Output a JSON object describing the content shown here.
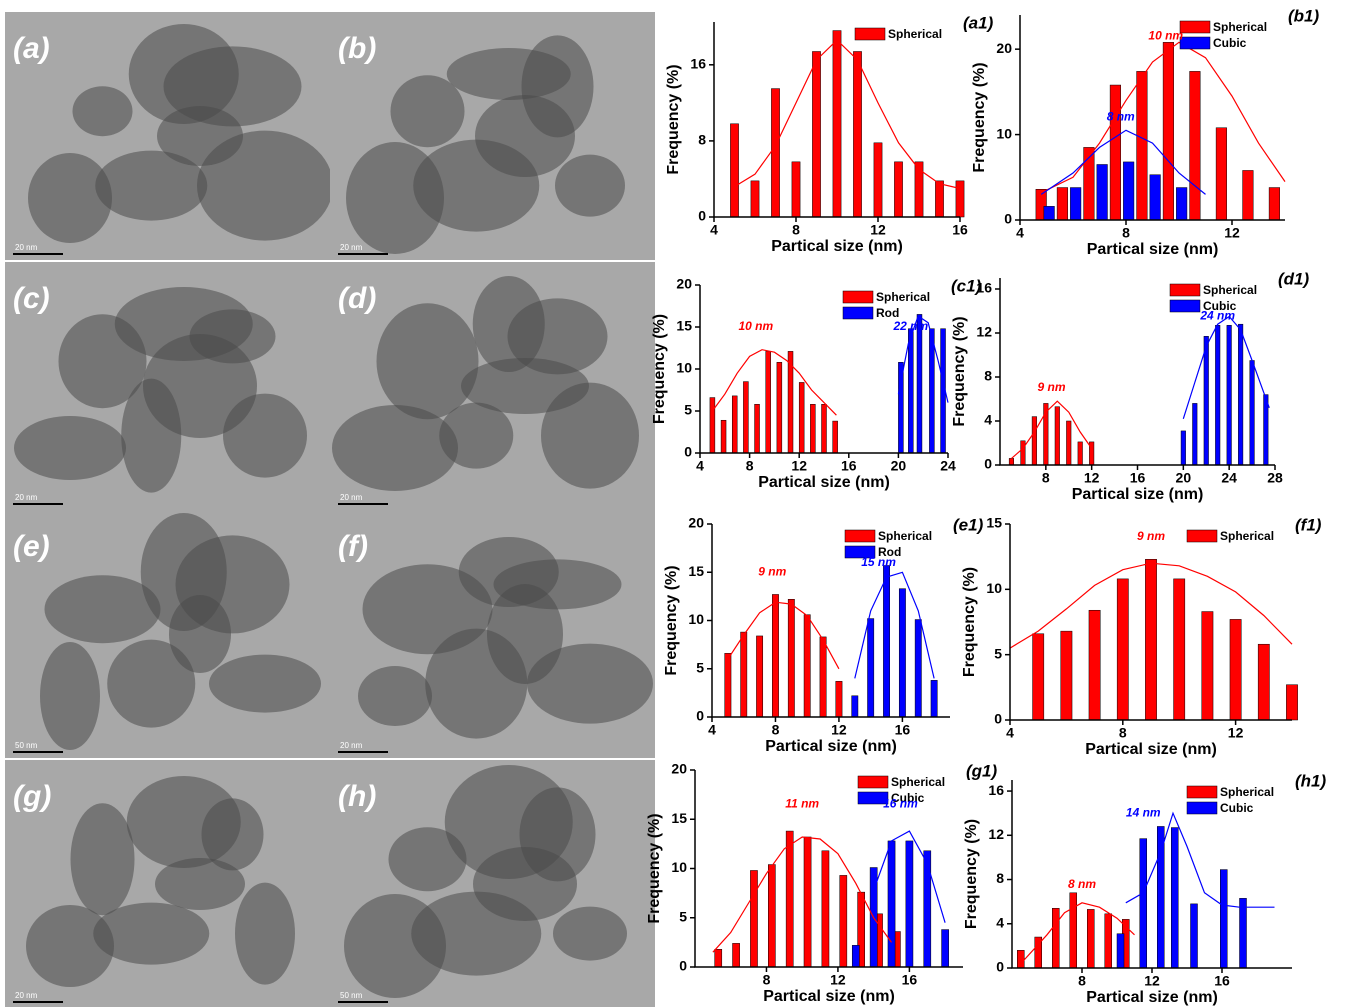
{
  "images": [
    {
      "label": "(a)",
      "scale_bar": "20 nm"
    },
    {
      "label": "(b)",
      "scale_bar": "20 nm"
    },
    {
      "label": "(c)",
      "scale_bar": "20 nm"
    },
    {
      "label": "(d)",
      "scale_bar": "20 nm"
    },
    {
      "label": "(e)",
      "scale_bar": "50 nm"
    },
    {
      "label": "(f)",
      "scale_bar": "20 nm"
    },
    {
      "label": "(g)",
      "scale_bar": "20 nm"
    },
    {
      "label": "(h)",
      "scale_bar": "50 nm"
    }
  ],
  "chart_data": [
    {
      "type": "bar",
      "panel": "(a1)",
      "xlabel": "Partical size (nm)",
      "ylabel": "Frequency (%)",
      "legend": "upper right",
      "xlim": [
        4,
        16
      ],
      "ylim": [
        0,
        20.5
      ],
      "xticks": [
        4,
        8,
        12,
        16
      ],
      "yticks": [
        0,
        8,
        16
      ],
      "series": [
        {
          "name": "Spherical",
          "color": "#ff0000",
          "x": [
            5,
            6,
            7,
            8,
            9,
            10,
            11,
            12,
            13,
            14,
            15,
            16
          ],
          "values": [
            9.8,
            3.8,
            13.5,
            5.8,
            17.4,
            19.6,
            17.4,
            7.8,
            5.8,
            5.8,
            3.8,
            3.8
          ]
        }
      ],
      "fits": [
        {
          "color": "#ff0000",
          "x": [
            5,
            6,
            7,
            8,
            9,
            10,
            11,
            12,
            13,
            14,
            15,
            16
          ],
          "values": [
            3.2,
            4.5,
            7.5,
            12,
            16.5,
            18.6,
            16.5,
            12,
            7.8,
            5,
            3.5,
            3
          ]
        }
      ],
      "annotations": []
    },
    {
      "type": "bar",
      "panel": "(b1)",
      "xlabel": "Partical size (nm)",
      "ylabel": "Frequency (%)",
      "legend": "upper right",
      "xlim": [
        4,
        14
      ],
      "ylim": [
        0,
        24
      ],
      "xticks": [
        4,
        8,
        12
      ],
      "yticks": [
        0,
        10,
        20
      ],
      "series": [
        {
          "name": "Spherical",
          "color": "#ff0000",
          "x": [
            4.8,
            5.6,
            6.6,
            7.6,
            8.6,
            9.6,
            10.6,
            11.6,
            12.6,
            13.6
          ],
          "values": [
            3.6,
            3.8,
            8.5,
            15.8,
            17.4,
            20.8,
            17.4,
            10.8,
            5.8,
            3.8
          ]
        },
        {
          "name": "Cubic",
          "color": "#0000ff",
          "x": [
            5.1,
            6.1,
            7.1,
            8.1,
            9.1,
            10.1
          ],
          "values": [
            1.6,
            3.8,
            6.5,
            6.8,
            5.3,
            3.8
          ]
        }
      ],
      "fits": [
        {
          "color": "#ff0000",
          "x": [
            4.8,
            6,
            7,
            8,
            9,
            10,
            11,
            12,
            13,
            14
          ],
          "values": [
            3.2,
            5,
            9,
            14,
            18.5,
            20.8,
            19,
            14.5,
            9,
            4.5
          ]
        },
        {
          "color": "#0000ff",
          "x": [
            4.8,
            6,
            7,
            8,
            9,
            10,
            11
          ],
          "values": [
            3,
            5.5,
            8.5,
            10.5,
            9,
            5.5,
            3
          ]
        }
      ],
      "annotations": [
        {
          "text": "10 nm",
          "color": "#ff0000"
        },
        {
          "text": "8 nm",
          "color": "#0000ff"
        }
      ]
    },
    {
      "type": "bar",
      "panel": "(c1)",
      "xlabel": "Partical size (nm)",
      "ylabel": "Frequency (%)",
      "legend": "upper right",
      "xlim": [
        4,
        24
      ],
      "ylim": [
        0,
        20
      ],
      "xticks": [
        4,
        8,
        12,
        16,
        20,
        24
      ],
      "yticks": [
        0,
        5,
        10,
        15,
        20
      ],
      "series": [
        {
          "name": "Spherical",
          "color": "#ff0000",
          "x": [
            5,
            5.9,
            6.8,
            7.7,
            8.6,
            9.5,
            10.4,
            11.3,
            12.2,
            13.1,
            14,
            14.9
          ],
          "values": [
            6.6,
            3.9,
            6.8,
            8.5,
            5.8,
            12.1,
            10.8,
            12.1,
            8.4,
            5.8,
            5.8,
            3.8
          ]
        },
        {
          "name": "Rod",
          "color": "#0000ff",
          "x": [
            20.2,
            21,
            21.7,
            22.7,
            23.6
          ],
          "values": [
            10.8,
            14.8,
            16.5,
            14.8,
            14.8
          ]
        }
      ],
      "fits": [
        {
          "color": "#ff0000",
          "x": [
            5,
            6,
            7,
            8,
            9,
            10,
            11,
            12,
            13,
            14,
            15
          ],
          "values": [
            5,
            7,
            9.5,
            11.5,
            12.3,
            12,
            11,
            9.5,
            7.5,
            6,
            4.5
          ]
        },
        {
          "color": "#0000ff",
          "x": [
            20,
            20.8,
            21.6,
            22.4,
            23.2,
            24
          ],
          "values": [
            7,
            13,
            16.3,
            15.5,
            11,
            6
          ]
        }
      ],
      "annotations": [
        {
          "text": "10 nm",
          "color": "#ff0000"
        },
        {
          "text": "22 nm",
          "color": "#0000ff"
        }
      ]
    },
    {
      "type": "bar",
      "panel": "(d1)",
      "xlabel": "Partical size (nm)",
      "ylabel": "Frequency (%)",
      "legend": "upper right",
      "xlim": [
        4,
        28
      ],
      "ylim": [
        0,
        17
      ],
      "xticks": [
        8,
        12,
        16,
        20,
        24,
        28
      ],
      "yticks": [
        0,
        4,
        8,
        12,
        16
      ],
      "series": [
        {
          "name": "Spherical",
          "color": "#ff0000",
          "x": [
            5,
            6,
            7,
            8,
            9,
            10,
            11,
            12
          ],
          "values": [
            0.6,
            2.2,
            4.4,
            5.6,
            5.3,
            4,
            2.1,
            2.1
          ]
        },
        {
          "name": "Cubic",
          "color": "#0000ff",
          "x": [
            20,
            21,
            22,
            23,
            24,
            25,
            26,
            27.2
          ],
          "values": [
            3.1,
            5.6,
            11.7,
            12.7,
            12.7,
            12.8,
            9.5,
            6.4
          ]
        }
      ],
      "fits": [
        {
          "color": "#ff0000",
          "x": [
            5,
            6,
            7,
            8,
            9,
            10,
            11,
            12
          ],
          "values": [
            0.6,
            1.5,
            3,
            4.8,
            5.8,
            4.8,
            3,
            1.5
          ]
        },
        {
          "color": "#0000ff",
          "x": [
            20,
            21,
            22,
            23,
            24,
            25,
            26,
            27.5
          ],
          "values": [
            4.2,
            7.5,
            10.8,
            12.8,
            13.5,
            12.3,
            9.5,
            5.2
          ]
        }
      ],
      "annotations": [
        {
          "text": "9 nm",
          "color": "#ff0000"
        },
        {
          "text": "24 nm",
          "color": "#0000ff"
        }
      ]
    },
    {
      "type": "bar",
      "panel": "(e1)",
      "xlabel": "Partical size (nm)",
      "ylabel": "Frequency (%)",
      "legend": "upper right",
      "xlim": [
        4,
        19
      ],
      "ylim": [
        0,
        20
      ],
      "xticks": [
        4,
        8,
        12,
        16
      ],
      "yticks": [
        0,
        5,
        10,
        15,
        20
      ],
      "series": [
        {
          "name": "Spherical",
          "color": "#ff0000",
          "x": [
            5,
            6,
            7,
            8,
            9,
            10,
            11,
            12
          ],
          "values": [
            6.6,
            8.8,
            8.4,
            12.7,
            12.2,
            10.6,
            8.3,
            3.7
          ]
        },
        {
          "name": "Rod",
          "color": "#0000ff",
          "x": [
            13,
            14,
            15,
            16,
            17,
            18
          ],
          "values": [
            2.2,
            10.2,
            15.7,
            13.3,
            10.1,
            3.8
          ]
        }
      ],
      "fits": [
        {
          "color": "#ff0000",
          "x": [
            5,
            6,
            7,
            8,
            9,
            10,
            11,
            12
          ],
          "values": [
            6,
            8.5,
            10.8,
            11.9,
            11.7,
            10.5,
            8,
            5
          ]
        },
        {
          "color": "#0000ff",
          "x": [
            13,
            14,
            15,
            16,
            17,
            18
          ],
          "values": [
            4,
            11,
            14.5,
            15,
            11,
            4
          ]
        }
      ],
      "annotations": [
        {
          "text": "9 nm",
          "color": "#ff0000"
        },
        {
          "text": "15 nm",
          "color": "#0000ff"
        }
      ]
    },
    {
      "type": "bar",
      "panel": "(f1)",
      "xlabel": "Partical size (nm)",
      "ylabel": "Frequency (%)",
      "legend": "upper right",
      "xlim": [
        4,
        14
      ],
      "ylim": [
        0,
        15
      ],
      "xticks": [
        4,
        8,
        12
      ],
      "yticks": [
        0,
        5,
        10,
        15
      ],
      "series": [
        {
          "name": "Spherical",
          "color": "#ff0000",
          "x": [
            5,
            6,
            7,
            8,
            9,
            10,
            11,
            12,
            13,
            14
          ],
          "values": [
            6.6,
            6.8,
            8.4,
            10.8,
            12.3,
            10.8,
            8.3,
            7.7,
            5.8,
            2.7
          ]
        }
      ],
      "fits": [
        {
          "color": "#ff0000",
          "x": [
            4,
            5,
            6,
            7,
            8,
            9,
            10,
            11,
            12,
            13,
            14
          ],
          "values": [
            5.5,
            6.8,
            8.5,
            10.3,
            11.5,
            12,
            11.8,
            11,
            9.8,
            8,
            5.8
          ]
        }
      ],
      "annotations": [
        {
          "text": "9 nm",
          "color": "#ff0000"
        }
      ]
    },
    {
      "type": "bar",
      "panel": "(g1)",
      "xlabel": "Partical size (nm)",
      "ylabel": "Frequency (%)",
      "legend": "upper right",
      "xlim": [
        4,
        19
      ],
      "ylim": [
        0,
        20
      ],
      "xticks": [
        8,
        12,
        16
      ],
      "yticks": [
        0,
        5,
        10,
        15,
        20
      ],
      "series": [
        {
          "name": "Spherical",
          "color": "#ff0000",
          "x": [
            5.3,
            6.3,
            7.3,
            8.3,
            9.3,
            10.3,
            11.3,
            12.3,
            13.3,
            14.3,
            15.3
          ],
          "values": [
            1.8,
            2.4,
            9.8,
            10.4,
            13.8,
            13.2,
            11.8,
            9.3,
            7.6,
            5.4,
            3.6
          ]
        },
        {
          "name": "Cubic",
          "color": "#0000ff",
          "x": [
            13,
            14,
            15,
            16,
            17,
            18
          ],
          "values": [
            2.2,
            10.1,
            12.8,
            12.8,
            11.8,
            3.8
          ]
        }
      ],
      "fits": [
        {
          "color": "#ff0000",
          "x": [
            5,
            6,
            7,
            8,
            9,
            10,
            11,
            12,
            13,
            14,
            15
          ],
          "values": [
            1.5,
            3.5,
            6.5,
            9.5,
            12,
            13.2,
            13,
            11.5,
            8.5,
            5,
            2.5
          ]
        },
        {
          "color": "#0000ff",
          "x": [
            14,
            15,
            16,
            17,
            18
          ],
          "values": [
            7.8,
            12.8,
            13.8,
            10.5,
            4.5
          ]
        }
      ],
      "annotations": [
        {
          "text": "11 nm",
          "color": "#ff0000"
        },
        {
          "text": "16 nm",
          "color": "#0000ff"
        }
      ]
    },
    {
      "type": "bar",
      "panel": "(h1)",
      "xlabel": "Partical size (nm)",
      "ylabel": "Frequency (%)",
      "legend": "upper right",
      "xlim": [
        4,
        20
      ],
      "ylim": [
        0,
        17
      ],
      "xticks": [
        8,
        12,
        16
      ],
      "yticks": [
        0,
        4,
        8,
        12,
        16
      ],
      "series": [
        {
          "name": "Spherical",
          "color": "#ff0000",
          "x": [
            4.5,
            5.5,
            6.5,
            7.5,
            8.5,
            9.5,
            10.5
          ],
          "values": [
            1.6,
            2.8,
            5.4,
            6.8,
            5.3,
            4.9,
            4.4
          ]
        },
        {
          "name": "Cubic",
          "color": "#0000ff",
          "x": [
            10.2,
            11.5,
            12.5,
            13.3,
            14.4,
            16.1,
            17.2
          ],
          "values": [
            3.1,
            11.7,
            12.8,
            12.7,
            5.8,
            8.9,
            6.3
          ]
        }
      ],
      "fits": [
        {
          "color": "#ff0000",
          "x": [
            4.5,
            6,
            7,
            8,
            9,
            10,
            11
          ],
          "values": [
            0.4,
            3,
            5,
            5.9,
            5.5,
            4.5,
            3
          ]
        },
        {
          "color": "#0000ff",
          "x": [
            10.5,
            11.5,
            12.5,
            13.2,
            14,
            15,
            16,
            17,
            18,
            19
          ],
          "values": [
            5.9,
            6.8,
            10.5,
            14,
            11,
            6.8,
            5.7,
            5.5,
            5.5,
            5.5
          ]
        }
      ],
      "annotations": [
        {
          "text": "8 nm",
          "color": "#ff0000"
        },
        {
          "text": "14 nm",
          "color": "#0000ff"
        }
      ]
    }
  ]
}
